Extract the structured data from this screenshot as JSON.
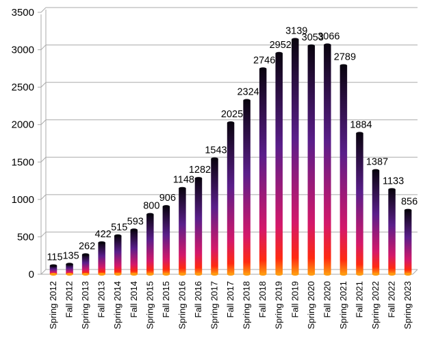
{
  "chart_data": {
    "type": "bar",
    "title": "",
    "xlabel": "",
    "ylabel": "",
    "ylim": [
      0,
      3500
    ],
    "yticks": [
      0,
      500,
      1000,
      1500,
      2000,
      2500,
      3000,
      3500
    ],
    "grid": true,
    "legend": "none",
    "categories": [
      "Spring 2012",
      "Fall 2012",
      "Spring 2013",
      "Fall 2013",
      "Spring 2014",
      "Fall 2014",
      "Spring 2015",
      "Fall 2015",
      "Spring 2016",
      "Fall 2016",
      "Spring 2017",
      "Fall 2017",
      "Spring 2018",
      "Fall 2018",
      "Spring 2019",
      "Fall 2019",
      "Spring 2020",
      "Fall 2020",
      "Spring 2021",
      "Fall 2021",
      "Spring 2022",
      "Fall 2022",
      "Spring 2023"
    ],
    "values": [
      115,
      135,
      262,
      422,
      515,
      593,
      800,
      906,
      1148,
      1282,
      1543,
      2025,
      2324,
      2746,
      2952,
      3139,
      3053,
      3066,
      2789,
      1884,
      1387,
      1133,
      856
    ],
    "data_labels": [
      "115",
      "135",
      "262",
      "422",
      "515",
      "593",
      "800",
      "906",
      "1148",
      "1282",
      "1543",
      "2025",
      "2324",
      "2746",
      "2952",
      "3139",
      "3053",
      "3066",
      "2789",
      "1884",
      "1387",
      "1133",
      "856"
    ],
    "colors": {
      "bar_top": "#0a0410",
      "bar_mid": "#5a1e8a",
      "bar_lower": "#d4186a",
      "bar_bottom": "#ff2a10",
      "bar_base": "#ff9a10",
      "grid": "#a9a9a9",
      "text": "#000000"
    }
  }
}
